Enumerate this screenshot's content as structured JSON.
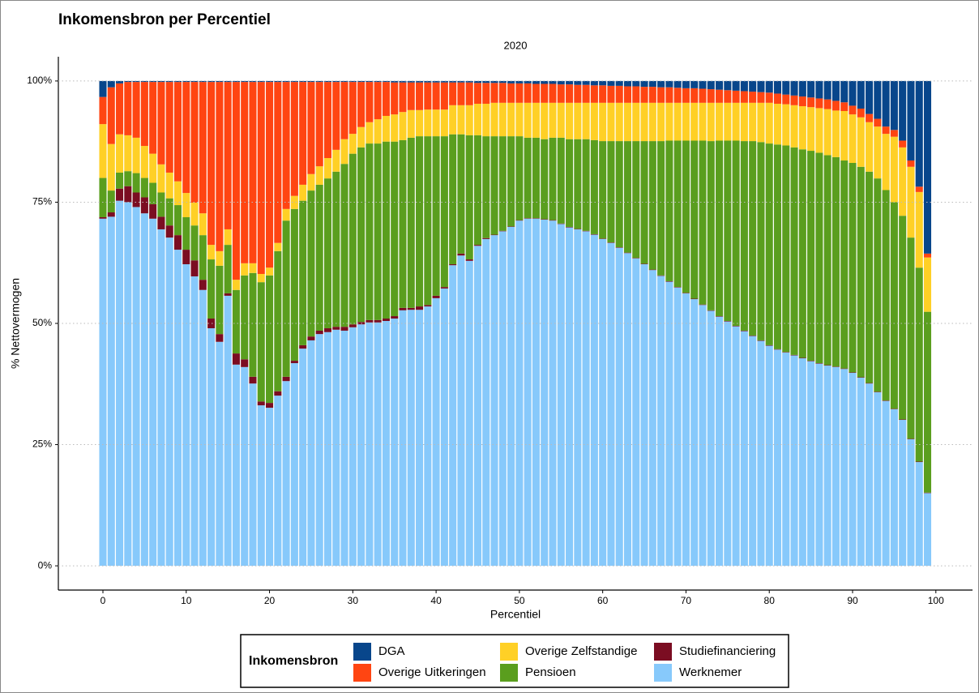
{
  "chart_data": {
    "type": "stacked_bar",
    "title": "Inkomensbron per Percentiel",
    "subtitle": "2020",
    "x_label": "Percentiel",
    "y_label": "% Nettovermogen",
    "legend_title": "Inkomensbron",
    "legend_position": "bottom",
    "grid": true,
    "xlim": [
      -5.35,
      104.4
    ],
    "xticks": [
      0,
      10,
      20,
      30,
      40,
      50,
      60,
      70,
      80,
      90,
      100
    ],
    "ylim": [
      -5,
      105
    ],
    "yticks": [
      {
        "value": 0,
        "label": "0%"
      },
      {
        "value": 25,
        "label": "25%"
      },
      {
        "value": 50,
        "label": "50%"
      },
      {
        "value": 75,
        "label": "75%"
      },
      {
        "value": 100,
        "label": "100%"
      }
    ],
    "x": [
      0,
      1,
      2,
      3,
      4,
      5,
      6,
      7,
      8,
      9,
      10,
      11,
      12,
      13,
      14,
      15,
      16,
      17,
      18,
      19,
      20,
      21,
      22,
      23,
      24,
      25,
      26,
      27,
      28,
      29,
      30,
      31,
      32,
      33,
      34,
      35,
      36,
      37,
      38,
      39,
      40,
      41,
      42,
      43,
      44,
      45,
      46,
      47,
      48,
      49,
      50,
      51,
      52,
      53,
      54,
      55,
      56,
      57,
      58,
      59,
      60,
      61,
      62,
      63,
      64,
      65,
      66,
      67,
      68,
      69,
      70,
      71,
      72,
      73,
      74,
      75,
      76,
      77,
      78,
      79,
      80,
      81,
      82,
      83,
      84,
      85,
      86,
      87,
      88,
      89,
      90,
      91,
      92,
      93,
      94,
      95,
      96,
      97,
      98,
      99
    ],
    "series": [
      {
        "name": "DGA",
        "color": "#08468b",
        "values": [
          3.3,
          1.3,
          0.5,
          0.2,
          0.2,
          0.2,
          0.2,
          0.2,
          0.2,
          0.2,
          0.2,
          0.2,
          0.2,
          0.2,
          0.2,
          0.2,
          0.2,
          0.2,
          0.2,
          0.2,
          0.2,
          0.2,
          0.2,
          0.2,
          0.2,
          0.2,
          0.2,
          0.2,
          0.2,
          0.2,
          0.2,
          0.2,
          0.2,
          0.2,
          0.2,
          0.3,
          0.3,
          0.3,
          0.3,
          0.3,
          0.3,
          0.3,
          0.3,
          0.3,
          0.3,
          0.4,
          0.4,
          0.4,
          0.4,
          0.5,
          0.5,
          0.5,
          0.6,
          0.6,
          0.6,
          0.7,
          0.7,
          0.8,
          0.8,
          0.9,
          0.9,
          1.0,
          1.0,
          1.1,
          1.1,
          1.2,
          1.2,
          1.3,
          1.3,
          1.4,
          1.5,
          1.5,
          1.6,
          1.7,
          1.8,
          1.9,
          2.0,
          2.1,
          2.2,
          2.3,
          2.4,
          2.6,
          2.8,
          3.0,
          3.2,
          3.4,
          3.6,
          3.8,
          4.1,
          4.4,
          5.1,
          5.7,
          6.8,
          7.8,
          9.4,
          10.1,
          12.3,
          16.4,
          21.8,
          35.6
        ]
      },
      {
        "name": "Overige Uitkeringen",
        "color": "#ff4512",
        "values": [
          5.6,
          11.7,
          10.5,
          11,
          11.5,
          13.2,
          14.8,
          17,
          18.7,
          20.5,
          22.9,
          24.9,
          27.1,
          33.6,
          34.9,
          30.4,
          40.8,
          37.4,
          37.4,
          39.6,
          38.3,
          33.2,
          26.2,
          23.5,
          21.2,
          19,
          17.4,
          15.7,
          14,
          11.8,
          10.7,
          9.3,
          8.3,
          7.7,
          7,
          6.6,
          6.1,
          5.7,
          5.7,
          5.6,
          5.6,
          5.6,
          4.7,
          4.7,
          4.7,
          4.3,
          4.3,
          4.1,
          4.1,
          4,
          4,
          4,
          3.9,
          3.9,
          3.9,
          3.8,
          3.8,
          3.7,
          3.7,
          3.6,
          3.6,
          3.5,
          3.5,
          3.4,
          3.4,
          3.3,
          3.3,
          3.2,
          3.2,
          3.1,
          3.0,
          3.0,
          2.9,
          2.8,
          2.7,
          2.6,
          2.5,
          2.4,
          2.3,
          2.2,
          2.1,
          2.1,
          2.0,
          2.0,
          2.0,
          2.0,
          2.0,
          2.0,
          2.0,
          1.8,
          1.8,
          1.8,
          1.7,
          1.6,
          1.5,
          1.4,
          1.4,
          1.3,
          1.1,
          0.8
        ]
      },
      {
        "name": "Overige Zelfstandige",
        "color": "#ffd026",
        "values": [
          11.1,
          9.6,
          7.9,
          7.4,
          7.3,
          6.6,
          6,
          5.8,
          5.3,
          4.9,
          5,
          4.7,
          4.5,
          3,
          3,
          3.2,
          2.1,
          2.5,
          2,
          1.7,
          1.6,
          1.7,
          2.4,
          2.7,
          3.3,
          3.4,
          3.8,
          4.2,
          4.5,
          5.1,
          4.1,
          4.2,
          4.4,
          5,
          5.3,
          5.6,
          5.8,
          5.7,
          5.4,
          5.5,
          5.5,
          5.5,
          6,
          6,
          6.2,
          6.5,
          6.7,
          6.9,
          6.9,
          6.9,
          6.9,
          7.2,
          7.2,
          7.5,
          7.2,
          7.2,
          7.5,
          7.5,
          7.5,
          7.7,
          7.9,
          7.9,
          7.9,
          7.9,
          7.9,
          7.9,
          7.9,
          7.9,
          7.8,
          7.8,
          7.8,
          7.8,
          7.8,
          7.9,
          7.8,
          7.8,
          7.8,
          7.9,
          7.9,
          8.1,
          8.4,
          8.4,
          8.5,
          8.7,
          8.9,
          9,
          9.2,
          9.5,
          9.6,
          10.2,
          10,
          10.2,
          10.2,
          10.7,
          11.6,
          13.5,
          14.1,
          14.6,
          15.6,
          11.2
        ]
      },
      {
        "name": "Pensioen",
        "color": "#5a9e1e",
        "values": [
          8.1,
          4.5,
          3.3,
          3.1,
          4,
          4,
          4.4,
          5,
          5.6,
          6.2,
          6.7,
          7.2,
          9.2,
          12.2,
          14.1,
          10,
          13.1,
          17.3,
          21.4,
          24.6,
          26.3,
          28.9,
          32.2,
          31.3,
          29.8,
          30.1,
          30.1,
          30.9,
          32,
          33.6,
          35.2,
          36,
          36.4,
          36.4,
          36.5,
          36,
          34.6,
          35.1,
          35.1,
          34.8,
          32.9,
          31.1,
          26.8,
          24.6,
          25.6,
          22.6,
          21,
          20.3,
          19.5,
          18.6,
          17.3,
          16.6,
          16.6,
          16.5,
          17,
          17.7,
          18.1,
          18.5,
          18.9,
          19.4,
          20.1,
          20.9,
          21.9,
          23,
          24.1,
          25.3,
          26.5,
          27.7,
          29,
          30.2,
          31.4,
          32.6,
          33.8,
          34.9,
          36.2,
          37.2,
          38.2,
          39.1,
          40.1,
          40.9,
          41.6,
          42.2,
          42.6,
          42.8,
          43,
          43.3,
          43.4,
          43.3,
          43.2,
          42.9,
          43.2,
          43.4,
          43.6,
          44,
          43.4,
          42.6,
          42,
          41.5,
          40,
          37.3
        ]
      },
      {
        "name": "Studiefinanciering",
        "color": "#7b0d22",
        "values": [
          0.3,
          0.9,
          2.5,
          3.3,
          3,
          3.3,
          3,
          2.6,
          2.5,
          3,
          3,
          3.3,
          2.1,
          2,
          1.6,
          0.5,
          2.3,
          1.6,
          1.4,
          0.8,
          1,
          0.9,
          0.9,
          0.5,
          0.7,
          0.8,
          0.7,
          0.8,
          0.6,
          0.8,
          0.6,
          0.5,
          0.5,
          0.5,
          0.5,
          0.5,
          0.5,
          0.4,
          0.7,
          0.3,
          0.5,
          0.3,
          0.2,
          0.4,
          0.3,
          0.2,
          0.2,
          0.1,
          0.1,
          0.1,
          0.1,
          0.1,
          0.1,
          0.1,
          0.1,
          0.1,
          0.1,
          0.1,
          0.1,
          0.1,
          0.1,
          0.1,
          0.1,
          0.1,
          0.1,
          0.1,
          0.1,
          0.1,
          0.1,
          0.1,
          0.1,
          0.1,
          0.1,
          0.1,
          0.1,
          0.1,
          0.1,
          0.1,
          0.1,
          0.1,
          0.1,
          0.1,
          0.1,
          0.1,
          0.1,
          0.1,
          0.1,
          0.1,
          0.1,
          0.1,
          0.1,
          0.1,
          0.1,
          0.1,
          0.1,
          0.1,
          0.1,
          0.1,
          0.1,
          0.1
        ]
      },
      {
        "name": "Werknemer",
        "color": "#87c9fb",
        "values": [
          71.6,
          72,
          75.3,
          75,
          74,
          72.7,
          71.6,
          69.4,
          67.7,
          65.2,
          62.2,
          59.7,
          56.9,
          49,
          46.2,
          55.7,
          41.5,
          41,
          37.6,
          33.1,
          32.6,
          35.1,
          38.1,
          41.8,
          44.8,
          46.5,
          47.8,
          48.2,
          48.7,
          48.5,
          49.2,
          49.8,
          50.2,
          50.2,
          50.5,
          51,
          52.7,
          52.8,
          52.8,
          53.5,
          55.2,
          57.2,
          62,
          64,
          62.9,
          66,
          67.4,
          68.2,
          69,
          69.9,
          71.2,
          71.6,
          71.6,
          71.4,
          71.2,
          70.5,
          69.8,
          69.4,
          69,
          68.3,
          67.4,
          66.6,
          65.6,
          64.5,
          63.4,
          62.2,
          61,
          59.8,
          58.6,
          57.4,
          56.2,
          55,
          53.8,
          52.6,
          51.4,
          50.4,
          49.4,
          48.4,
          47.4,
          46.4,
          45.4,
          44.6,
          44,
          43.4,
          42.8,
          42.2,
          41.7,
          41.3,
          41,
          40.6,
          39.8,
          38.8,
          37.6,
          35.8,
          34,
          32.3,
          30.1,
          26.1,
          21.4,
          15
        ]
      }
    ]
  }
}
